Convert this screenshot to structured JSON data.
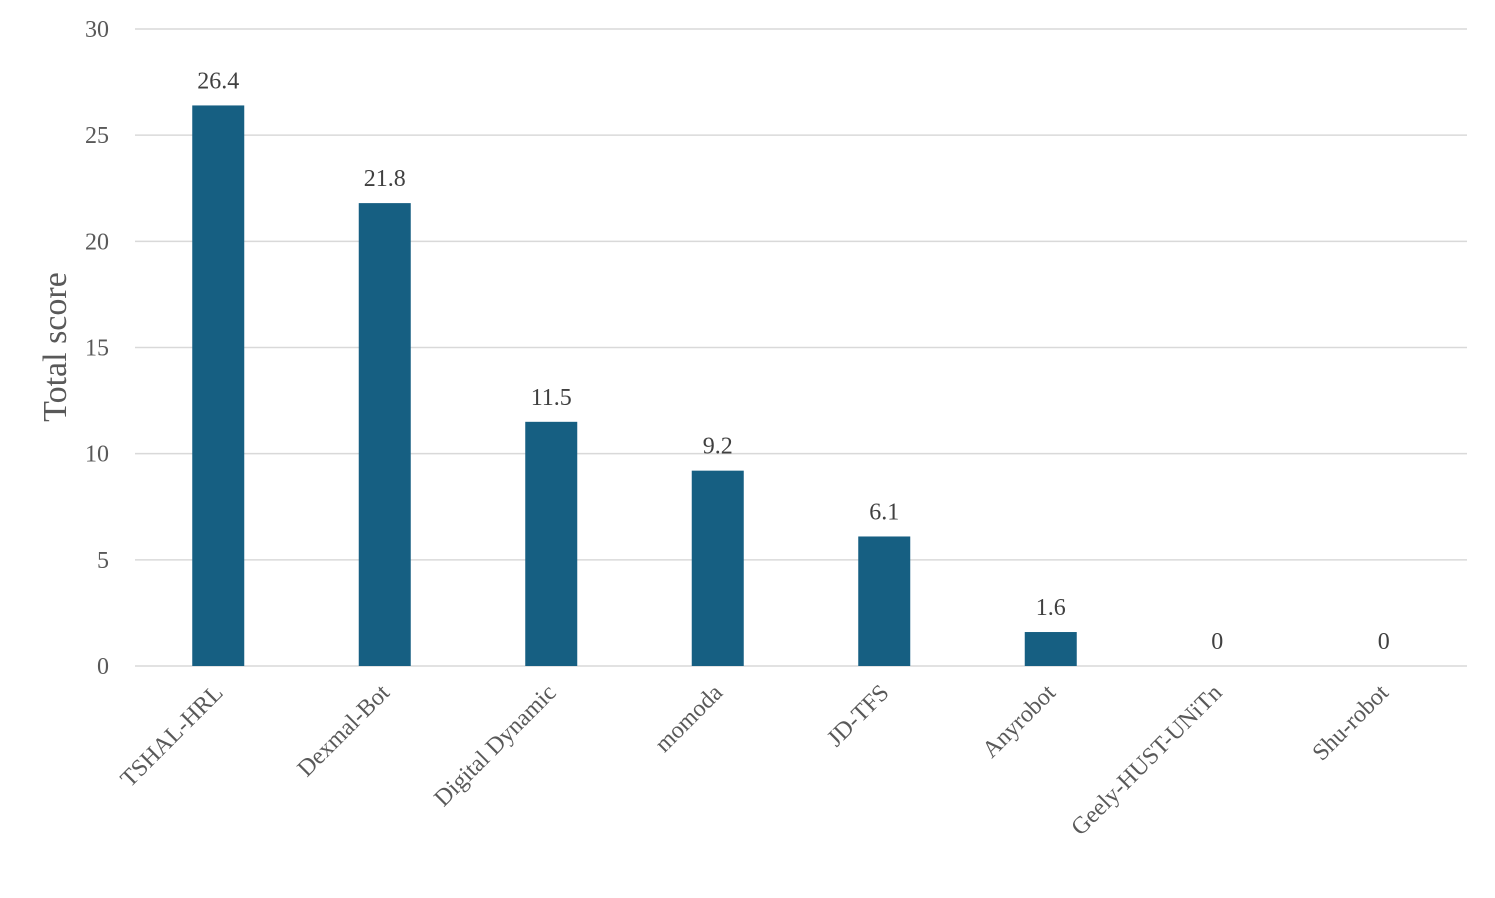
{
  "chart_data": {
    "type": "bar",
    "title": "",
    "xlabel": "",
    "ylabel": "Total score",
    "ylim": [
      0,
      30
    ],
    "yticks": [
      0,
      5,
      10,
      15,
      20,
      25,
      30
    ],
    "grid": true,
    "legend": "none",
    "bar_color": "#165f82",
    "categories": [
      "TSHAL-HRL",
      "Dexmal-Bot",
      "Digital Dynamic",
      "momoda",
      "JD-TFS",
      "Anyrobot",
      "Geely-HUST-UNiTn",
      "Shu-robot"
    ],
    "values": [
      26.4,
      21.8,
      11.5,
      9.2,
      6.1,
      1.6,
      0,
      0
    ],
    "data_labels": [
      "26.4",
      "21.8",
      "11.5",
      "9.2",
      "6.1",
      "1.6",
      "0",
      "0"
    ]
  }
}
